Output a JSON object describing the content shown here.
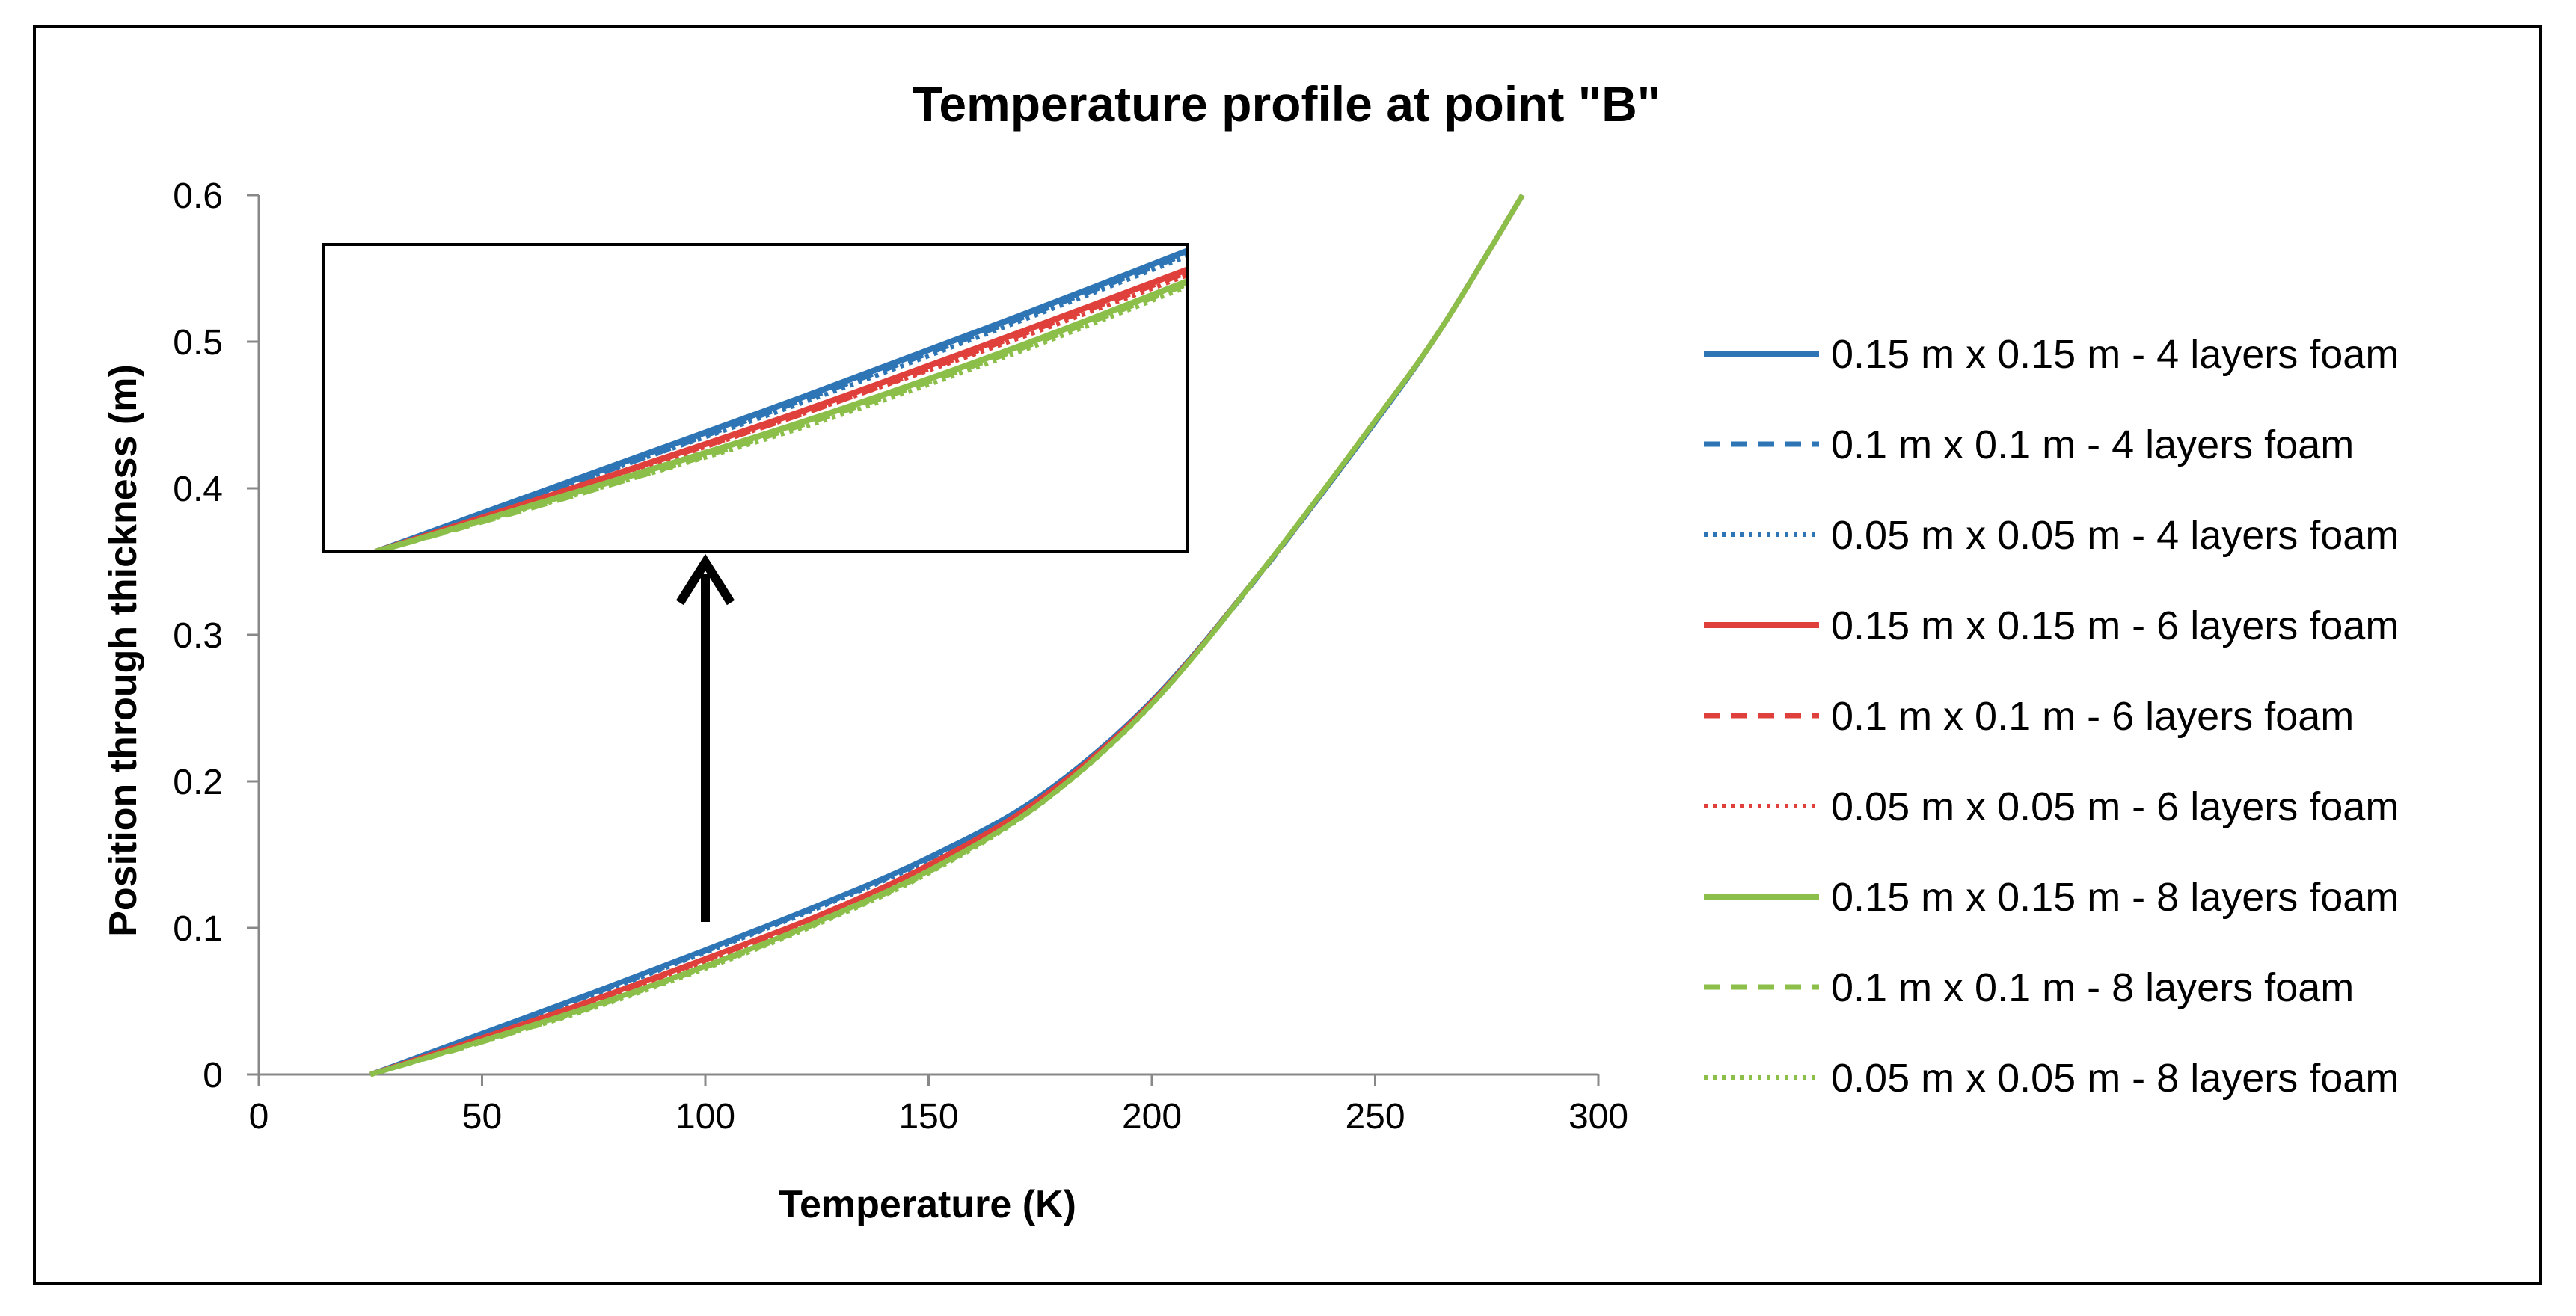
{
  "chart_data": {
    "type": "line",
    "title": "Temperature profile at point \"B\"",
    "xlabel": "Temperature (K)",
    "ylabel": "Position through thickness (m)",
    "xlim": [
      0,
      300
    ],
    "ylim": [
      0,
      0.6
    ],
    "xticks": [
      0,
      50,
      100,
      150,
      200,
      250,
      300
    ],
    "yticks": [
      0,
      0.1,
      0.2,
      0.3,
      0.4,
      0.5,
      0.6
    ],
    "xtick_labels": [
      "0",
      "50",
      "100",
      "150",
      "200",
      "250",
      "300"
    ],
    "ytick_labels": [
      "0",
      "0.1",
      "0.2",
      "0.3",
      "0.4",
      "0.5",
      "0.6"
    ],
    "grid": false,
    "legend_position": "right",
    "series": [
      {
        "name": "0.15 m x 0.15 m - 4 layers foam",
        "color": "#2E75B6",
        "dash": "solid",
        "x": [
          25,
          50,
          75,
          100,
          125,
          150,
          175,
          200,
          225,
          250,
          265,
          283
        ],
        "y": [
          0,
          0.028,
          0.056,
          0.085,
          0.115,
          0.148,
          0.19,
          0.255,
          0.345,
          0.445,
          0.51,
          0.6
        ]
      },
      {
        "name": "0.1 m x 0.1 m - 4 layers foam",
        "color": "#2E75B6",
        "dash": "dashed",
        "x": [
          25,
          50,
          75,
          100,
          125,
          150,
          175,
          200,
          225,
          250,
          265,
          283
        ],
        "y": [
          0,
          0.027,
          0.055,
          0.084,
          0.114,
          0.147,
          0.189,
          0.254,
          0.344,
          0.445,
          0.51,
          0.6
        ]
      },
      {
        "name": "0.05 m x 0.05 m - 4 layers foam",
        "color": "#2E75B6",
        "dash": "dotted",
        "x": [
          25,
          50,
          75,
          100,
          125,
          150,
          175,
          200,
          225,
          250,
          265,
          283
        ],
        "y": [
          0,
          0.027,
          0.054,
          0.083,
          0.113,
          0.146,
          0.189,
          0.254,
          0.344,
          0.445,
          0.51,
          0.6
        ]
      },
      {
        "name": "0.15 m x 0.15 m - 6 layers foam",
        "color": "#E0403B",
        "dash": "solid",
        "x": [
          25,
          50,
          75,
          100,
          125,
          150,
          175,
          200,
          225,
          250,
          265,
          283
        ],
        "y": [
          0,
          0.025,
          0.051,
          0.079,
          0.108,
          0.143,
          0.188,
          0.254,
          0.345,
          0.446,
          0.51,
          0.6
        ]
      },
      {
        "name": "0.1 m x 0.1 m - 6 layers foam",
        "color": "#E0403B",
        "dash": "dashed",
        "x": [
          25,
          50,
          75,
          100,
          125,
          150,
          175,
          200,
          225,
          250,
          265,
          283
        ],
        "y": [
          0,
          0.025,
          0.05,
          0.078,
          0.107,
          0.142,
          0.187,
          0.254,
          0.345,
          0.446,
          0.51,
          0.6
        ]
      },
      {
        "name": "0.05 m x 0.05 m - 6 layers foam",
        "color": "#E0403B",
        "dash": "dotted",
        "x": [
          25,
          50,
          75,
          100,
          125,
          150,
          175,
          200,
          225,
          250,
          265,
          283
        ],
        "y": [
          0,
          0.024,
          0.05,
          0.077,
          0.106,
          0.141,
          0.187,
          0.253,
          0.345,
          0.446,
          0.51,
          0.6
        ]
      },
      {
        "name": "0.15 m x 0.15 m - 8 layers foam",
        "color": "#8BBF4A",
        "dash": "solid",
        "x": [
          25,
          50,
          75,
          100,
          125,
          150,
          175,
          200,
          225,
          250,
          265,
          283
        ],
        "y": [
          0,
          0.023,
          0.047,
          0.074,
          0.104,
          0.139,
          0.185,
          0.253,
          0.345,
          0.446,
          0.51,
          0.6
        ]
      },
      {
        "name": "0.1 m x 0.1 m - 8 layers foam",
        "color": "#8BBF4A",
        "dash": "dashed",
        "x": [
          25,
          50,
          75,
          100,
          125,
          150,
          175,
          200,
          225,
          250,
          265,
          283
        ],
        "y": [
          0,
          0.022,
          0.046,
          0.073,
          0.103,
          0.138,
          0.185,
          0.253,
          0.345,
          0.446,
          0.51,
          0.6
        ]
      },
      {
        "name": "0.05 m x 0.05 m - 8 layers foam",
        "color": "#8BBF4A",
        "dash": "dotted",
        "x": [
          25,
          50,
          75,
          100,
          125,
          150,
          175,
          200,
          225,
          250,
          265,
          283
        ],
        "y": [
          0,
          0.022,
          0.045,
          0.072,
          0.102,
          0.137,
          0.184,
          0.252,
          0.345,
          0.446,
          0.51,
          0.6
        ]
      }
    ],
    "inset": {
      "description_source": "zoom of lower region",
      "x_range": [
        25,
        120
      ],
      "y_range": [
        0,
        0.11
      ]
    },
    "annotation_arrow": {
      "from_x": 100,
      "from_y": 0.105,
      "to": "inset"
    }
  }
}
